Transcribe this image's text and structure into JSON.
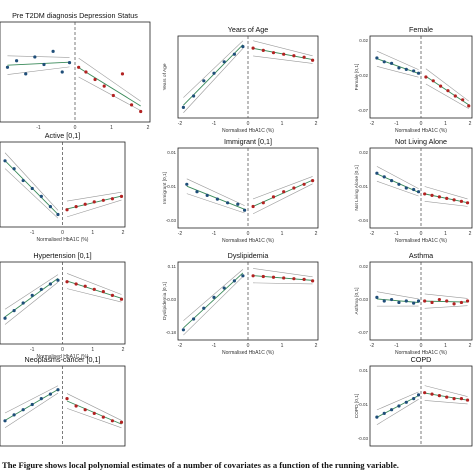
{
  "caption": "The Figure shows local polynomial estimates of a number of covariates as a function of the running variable.",
  "colors": {
    "left_points": "#1f4e79",
    "right_points": "#b22222",
    "fit": "#3a8a5a",
    "ci": "#9a9a9a",
    "cutoff": "#444444"
  },
  "chart_data": [
    {
      "type": "scatter",
      "title": "Pre T2DM diagnosis Depression Status",
      "xlabel": "",
      "ylabel": "",
      "xticks": [
        "-1",
        "0",
        "1",
        "2"
      ],
      "yticks": [],
      "left_x": [
        -1.85,
        -1.6,
        -1.35,
        -1.1,
        -0.85,
        -0.6,
        -0.35,
        -0.15
      ],
      "left_y": [
        0.55,
        0.62,
        0.48,
        0.66,
        0.58,
        0.72,
        0.5,
        0.6
      ],
      "right_x": [
        0.1,
        0.3,
        0.55,
        0.8,
        1.05,
        1.3,
        1.55,
        1.8
      ],
      "right_y": [
        0.55,
        0.5,
        0.42,
        0.35,
        0.25,
        0.48,
        0.15,
        0.08
      ]
    },
    {
      "type": "scatter",
      "title": "Years of Age",
      "xlabel": "Normalised HbA1C (%)",
      "ylabel": "Years of Age",
      "xticks": [
        "-2",
        "-1",
        "0",
        "1",
        "2"
      ],
      "yticks": [],
      "left_x": [
        -1.9,
        -1.6,
        -1.3,
        -1.0,
        -0.7,
        -0.4,
        -0.15
      ],
      "left_y": [
        0.1,
        0.25,
        0.45,
        0.55,
        0.7,
        0.8,
        0.9
      ],
      "right_x": [
        0.15,
        0.45,
        0.75,
        1.05,
        1.35,
        1.65,
        1.9
      ],
      "right_y": [
        0.88,
        0.85,
        0.82,
        0.8,
        0.78,
        0.76,
        0.72
      ]
    },
    {
      "type": "scatter",
      "title": "Female",
      "xlabel": "Normalised HbA1C (%)",
      "ylabel": "Female [0,1]",
      "xticks": [
        "-2",
        "-1",
        "0",
        "1",
        "2"
      ],
      "yticks": [
        "0.02",
        "-0.02",
        "-0.07"
      ],
      "left_x": [
        -1.8,
        -1.5,
        -1.2,
        -0.9,
        -0.6,
        -0.3,
        -0.1
      ],
      "left_y": [
        0.75,
        0.7,
        0.68,
        0.62,
        0.6,
        0.58,
        0.55
      ],
      "right_x": [
        0.2,
        0.5,
        0.8,
        1.1,
        1.4,
        1.7,
        1.95
      ],
      "right_y": [
        0.5,
        0.45,
        0.38,
        0.32,
        0.25,
        0.2,
        0.12
      ]
    },
    {
      "type": "scatter",
      "title": "Active [0,1]",
      "xlabel": "Normalised HbA1C (%)",
      "ylabel": "",
      "xticks": [
        "-1",
        "0",
        "1",
        "2"
      ],
      "yticks": [],
      "left_x": [
        -1.9,
        -1.6,
        -1.3,
        -1.0,
        -0.7,
        -0.4,
        -0.15
      ],
      "left_y": [
        0.8,
        0.7,
        0.55,
        0.45,
        0.35,
        0.22,
        0.12
      ],
      "right_x": [
        0.15,
        0.45,
        0.75,
        1.05,
        1.35,
        1.65,
        1.95
      ],
      "right_y": [
        0.18,
        0.22,
        0.25,
        0.28,
        0.3,
        0.32,
        0.35
      ]
    },
    {
      "type": "scatter",
      "title": "Immigrant [0,1]",
      "xlabel": "Normalised HbA1C (%)",
      "ylabel": "Immigrant [0,1]",
      "xticks": [
        "-2",
        "-1",
        "0",
        "1",
        "2"
      ],
      "yticks": [
        "0.01",
        "-0.01",
        "-0.03"
      ],
      "left_x": [
        -1.8,
        -1.5,
        -1.2,
        -0.9,
        -0.6,
        -0.3,
        -0.1
      ],
      "left_y": [
        0.55,
        0.45,
        0.4,
        0.35,
        0.3,
        0.28,
        0.2
      ],
      "right_x": [
        0.15,
        0.45,
        0.75,
        1.05,
        1.35,
        1.65,
        1.9
      ],
      "right_y": [
        0.25,
        0.3,
        0.38,
        0.45,
        0.5,
        0.55,
        0.6
      ]
    },
    {
      "type": "scatter",
      "title": "Not Living Alone",
      "xlabel": "Normalised HbA1C (%)",
      "ylabel": "Not Living Alone [0,1]",
      "xticks": [
        "-2",
        "-1",
        "0",
        "1",
        "2"
      ],
      "yticks": [
        "0.02",
        "-0.01",
        "-0.04"
      ],
      "left_x": [
        -1.8,
        -1.5,
        -1.2,
        -0.9,
        -0.6,
        -0.3,
        -0.1
      ],
      "left_y": [
        0.7,
        0.65,
        0.6,
        0.55,
        0.5,
        0.48,
        0.45
      ],
      "right_x": [
        0.15,
        0.45,
        0.75,
        1.05,
        1.35,
        1.65,
        1.9
      ],
      "right_y": [
        0.42,
        0.4,
        0.38,
        0.36,
        0.34,
        0.32,
        0.3
      ]
    },
    {
      "type": "scatter",
      "title": "Hypertension [0,1]",
      "xlabel": "Normalised HbA1C (%)",
      "ylabel": "",
      "xticks": [
        "-1",
        "0",
        "1",
        "2"
      ],
      "yticks": [],
      "left_x": [
        -1.9,
        -1.6,
        -1.3,
        -1.0,
        -0.7,
        -0.4,
        -0.15
      ],
      "left_y": [
        0.3,
        0.4,
        0.5,
        0.6,
        0.68,
        0.75,
        0.8
      ],
      "right_x": [
        0.15,
        0.45,
        0.75,
        1.05,
        1.35,
        1.65,
        1.95
      ],
      "right_y": [
        0.78,
        0.75,
        0.72,
        0.68,
        0.65,
        0.6,
        0.55
      ]
    },
    {
      "type": "scatter",
      "title": "Dyslipidemia",
      "xlabel": "Normalised HbA1C (%)",
      "ylabel": "Dyslipidemia [0,1]",
      "xticks": [
        "-2",
        "-1",
        "0",
        "1",
        "2"
      ],
      "yticks": [
        "0.11",
        "-0.03",
        "-0.18"
      ],
      "left_x": [
        -1.9,
        -1.6,
        -1.3,
        -1.0,
        -0.7,
        -0.4,
        -0.15
      ],
      "left_y": [
        0.1,
        0.25,
        0.4,
        0.55,
        0.68,
        0.78,
        0.85
      ],
      "right_x": [
        0.15,
        0.45,
        0.75,
        1.05,
        1.35,
        1.65,
        1.9
      ],
      "right_y": [
        0.85,
        0.84,
        0.83,
        0.82,
        0.81,
        0.8,
        0.78
      ]
    },
    {
      "type": "scatter",
      "title": "Asthma",
      "xlabel": "Normalised HbA1C (%)",
      "ylabel": "Asthma [0,1]",
      "xticks": [
        "-2",
        "-1",
        "0",
        "1",
        "2"
      ],
      "yticks": [
        "0.02",
        "-0.03",
        "-0.07"
      ],
      "left_x": [
        -1.8,
        -1.5,
        -1.2,
        -0.9,
        -0.6,
        -0.3,
        -0.1
      ],
      "left_y": [
        0.55,
        0.5,
        0.52,
        0.48,
        0.5,
        0.47,
        0.5
      ],
      "right_x": [
        0.15,
        0.45,
        0.75,
        1.05,
        1.35,
        1.65,
        1.9
      ],
      "right_y": [
        0.5,
        0.48,
        0.52,
        0.5,
        0.46,
        0.48,
        0.5
      ]
    },
    {
      "type": "scatter",
      "title": "Neoplasms-cancer [0,1]",
      "xlabel": "",
      "ylabel": "",
      "xticks": [],
      "yticks": [],
      "left_x": [
        -1.9,
        -1.6,
        -1.3,
        -1.0,
        -0.7,
        -0.4,
        -0.15
      ],
      "left_y": [
        0.3,
        0.38,
        0.45,
        0.52,
        0.6,
        0.66,
        0.72
      ],
      "right_x": [
        0.15,
        0.45,
        0.75,
        1.05,
        1.35,
        1.65,
        1.95
      ],
      "right_y": [
        0.6,
        0.5,
        0.45,
        0.4,
        0.35,
        0.3,
        0.28
      ]
    },
    {
      "type": "scatter",
      "title": "COPD",
      "xlabel": "",
      "ylabel": "COPD [0,1]",
      "xticks": [],
      "yticks": [
        "0.01",
        "-0.01",
        "-0.03"
      ],
      "left_x": [
        -1.8,
        -1.5,
        -1.2,
        -0.9,
        -0.6,
        -0.3,
        -0.1
      ],
      "left_y": [
        0.35,
        0.4,
        0.45,
        0.5,
        0.55,
        0.6,
        0.65
      ],
      "right_x": [
        0.15,
        0.45,
        0.75,
        1.05,
        1.35,
        1.65,
        1.9
      ],
      "right_y": [
        0.68,
        0.66,
        0.64,
        0.62,
        0.6,
        0.6,
        0.58
      ]
    }
  ]
}
